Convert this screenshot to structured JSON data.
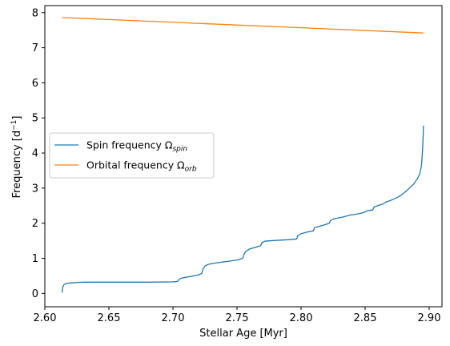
{
  "chart_data": {
    "type": "line",
    "xlabel": "Stellar Age [Myr]",
    "ylabel": "Frequency [d",
    "ylabel_sup": "−1",
    "ylabel_end": "]",
    "xlim": [
      2.6,
      2.91
    ],
    "ylim": [
      -0.38,
      8.2
    ],
    "xticks": [
      2.6,
      2.65,
      2.7,
      2.75,
      2.8,
      2.85,
      2.9
    ],
    "xtick_labels": [
      "2.60",
      "2.65",
      "2.70",
      "2.75",
      "2.80",
      "2.85",
      "2.90"
    ],
    "yticks": [
      0,
      1,
      2,
      3,
      4,
      5,
      6,
      7,
      8
    ],
    "ytick_labels": [
      "0",
      "1",
      "2",
      "3",
      "4",
      "5",
      "6",
      "7",
      "8"
    ],
    "grid": false,
    "legend_position": "center-left",
    "series": [
      {
        "name": "Spin frequency Ω",
        "name_sub": "spin",
        "color": "#1f77b4",
        "points": [
          [
            2.6135,
            0.02
          ],
          [
            2.6137,
            0.12
          ],
          [
            2.614,
            0.18
          ],
          [
            2.6145,
            0.22
          ],
          [
            2.615,
            0.25
          ],
          [
            2.616,
            0.27
          ],
          [
            2.618,
            0.29
          ],
          [
            2.62,
            0.3
          ],
          [
            2.625,
            0.31
          ],
          [
            2.63,
            0.32
          ],
          [
            2.65,
            0.32
          ],
          [
            2.68,
            0.32
          ],
          [
            2.7,
            0.33
          ],
          [
            2.7035,
            0.34
          ],
          [
            2.705,
            0.4
          ],
          [
            2.706,
            0.43
          ],
          [
            2.71,
            0.46
          ],
          [
            2.715,
            0.49
          ],
          [
            2.72,
            0.53
          ],
          [
            2.7225,
            0.57
          ],
          [
            2.7235,
            0.7
          ],
          [
            2.725,
            0.78
          ],
          [
            2.727,
            0.82
          ],
          [
            2.73,
            0.85
          ],
          [
            2.74,
            0.9
          ],
          [
            2.75,
            0.95
          ],
          [
            2.7545,
            1.0
          ],
          [
            2.7555,
            1.12
          ],
          [
            2.757,
            1.2
          ],
          [
            2.76,
            1.27
          ],
          [
            2.765,
            1.32
          ],
          [
            2.7685,
            1.36
          ],
          [
            2.7695,
            1.45
          ],
          [
            2.772,
            1.49
          ],
          [
            2.78,
            1.51
          ],
          [
            2.79,
            1.53
          ],
          [
            2.7965,
            1.55
          ],
          [
            2.7975,
            1.65
          ],
          [
            2.8,
            1.7
          ],
          [
            2.805,
            1.75
          ],
          [
            2.8095,
            1.78
          ],
          [
            2.8105,
            1.87
          ],
          [
            2.813,
            1.9
          ],
          [
            2.818,
            1.95
          ],
          [
            2.822,
            2.0
          ],
          [
            2.823,
            2.08
          ],
          [
            2.826,
            2.13
          ],
          [
            2.832,
            2.17
          ],
          [
            2.836,
            2.21
          ],
          [
            2.838,
            2.23
          ],
          [
            2.845,
            2.27
          ],
          [
            2.8495,
            2.31
          ],
          [
            2.851,
            2.35
          ],
          [
            2.856,
            2.38
          ],
          [
            2.857,
            2.46
          ],
          [
            2.86,
            2.5
          ],
          [
            2.864,
            2.55
          ],
          [
            2.866,
            2.6
          ],
          [
            2.87,
            2.65
          ],
          [
            2.873,
            2.7
          ],
          [
            2.876,
            2.75
          ],
          [
            2.88,
            2.85
          ],
          [
            2.884,
            2.98
          ],
          [
            2.888,
            3.12
          ],
          [
            2.891,
            3.28
          ],
          [
            2.893,
            3.45
          ],
          [
            2.894,
            3.65
          ],
          [
            2.8945,
            3.9
          ],
          [
            2.895,
            4.2
          ],
          [
            2.8953,
            4.5
          ],
          [
            2.8955,
            4.78
          ]
        ]
      },
      {
        "name": "Orbital frequency Ω",
        "name_sub": "orb",
        "color": "#ff7f0e",
        "points": [
          [
            2.6135,
            7.86
          ],
          [
            2.8955,
            7.42
          ]
        ]
      }
    ]
  }
}
